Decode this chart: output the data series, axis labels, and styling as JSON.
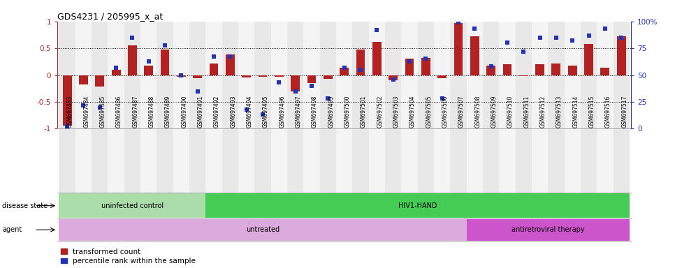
{
  "title": "GDS4231 / 205995_x_at",
  "samples": [
    "GSM697483",
    "GSM697484",
    "GSM697485",
    "GSM697486",
    "GSM697487",
    "GSM697488",
    "GSM697489",
    "GSM697490",
    "GSM697491",
    "GSM697492",
    "GSM697493",
    "GSM697494",
    "GSM697495",
    "GSM697496",
    "GSM697497",
    "GSM697498",
    "GSM697499",
    "GSM697500",
    "GSM697501",
    "GSM697502",
    "GSM697503",
    "GSM697504",
    "GSM697505",
    "GSM697506",
    "GSM697507",
    "GSM697508",
    "GSM697509",
    "GSM697510",
    "GSM697511",
    "GSM697512",
    "GSM697513",
    "GSM697514",
    "GSM697515",
    "GSM697516",
    "GSM697517"
  ],
  "bar_values": [
    -0.95,
    -0.17,
    -0.22,
    0.1,
    0.55,
    0.17,
    0.48,
    -0.03,
    -0.06,
    0.22,
    0.38,
    -0.04,
    -0.03,
    -0.03,
    -0.3,
    -0.15,
    -0.07,
    0.14,
    0.48,
    0.62,
    -0.1,
    0.3,
    0.32,
    -0.06,
    0.97,
    0.72,
    0.17,
    0.2,
    -0.02,
    0.2,
    0.22,
    0.17,
    0.58,
    0.14,
    0.72
  ],
  "percentile_values": [
    0.02,
    0.22,
    0.2,
    0.57,
    0.85,
    0.63,
    0.78,
    0.5,
    0.35,
    0.67,
    0.67,
    0.18,
    0.13,
    0.43,
    0.35,
    0.4,
    0.28,
    0.57,
    0.55,
    0.92,
    0.46,
    0.63,
    0.65,
    0.28,
    0.99,
    0.93,
    0.58,
    0.8,
    0.72,
    0.85,
    0.85,
    0.82,
    0.87,
    0.93,
    0.85
  ],
  "bar_color": "#B22222",
  "dot_color": "#2233BB",
  "disease_state_groups": [
    {
      "label": "uninfected control",
      "start": 0,
      "end": 9,
      "color": "#AADDAA"
    },
    {
      "label": "HIV1-HAND",
      "start": 9,
      "end": 35,
      "color": "#44CC55"
    }
  ],
  "agent_groups": [
    {
      "label": "untreated",
      "start": 0,
      "end": 25,
      "color": "#DDAADD"
    },
    {
      "label": "antiretroviral therapy",
      "start": 25,
      "end": 35,
      "color": "#CC55CC"
    }
  ],
  "disease_state_label": "disease state",
  "agent_label": "agent",
  "legend_bar_label": "transformed count",
  "legend_dot_label": "percentile rank within the sample",
  "hline_color": "black",
  "bg_colors": [
    "#E8E8E8",
    "#F4F4F4"
  ]
}
